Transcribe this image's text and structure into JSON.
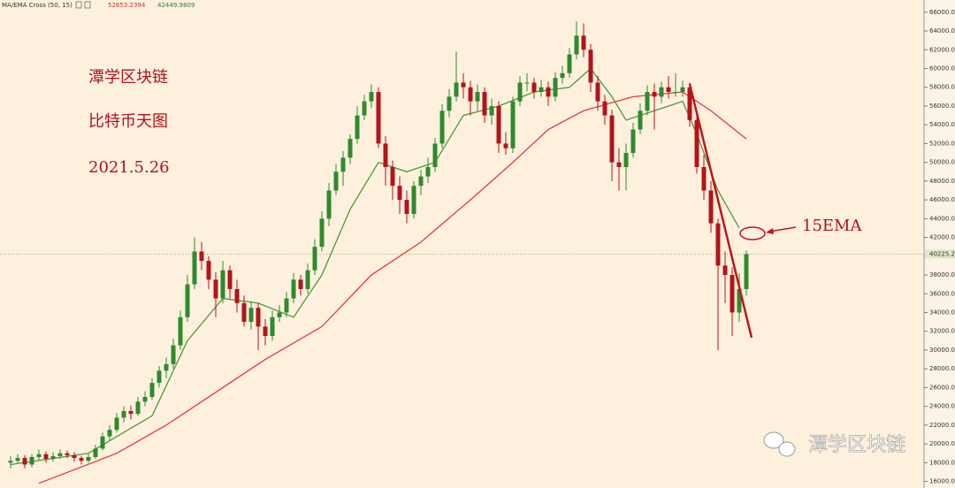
{
  "chart_data": {
    "type": "candlestick",
    "indicator": "MA/EMA Cross (50, 15)",
    "annotations": [
      "潭学区块链",
      "比特币天图",
      "2021.5.26",
      "15EMA"
    ],
    "watermark": "潭学区块链",
    "up_color": "#2f8a2f",
    "down_color": "#b3141b",
    "last_price": 40225.25,
    "ylim": [
      15300,
      67300
    ],
    "yticks": [
      {
        "value": 16000,
        "label": "16000.00"
      },
      {
        "value": 18000,
        "label": "18000.00"
      },
      {
        "value": 20000,
        "label": "20000.00"
      },
      {
        "value": 22000,
        "label": "22000.00"
      },
      {
        "value": 24000,
        "label": "24000.00"
      },
      {
        "value": 26000,
        "label": "26000.00"
      },
      {
        "value": 28000,
        "label": "28000.00"
      },
      {
        "value": 30000,
        "label": "30000.00"
      },
      {
        "value": 32000,
        "label": "32000.00"
      },
      {
        "value": 34000,
        "label": "34000.00"
      },
      {
        "value": 36000,
        "label": "36000.00"
      },
      {
        "value": 38000,
        "label": "38000.00"
      },
      {
        "value": 40000,
        "label": "40000.00"
      },
      {
        "value": 42000,
        "label": "42000.00"
      },
      {
        "value": 44000,
        "label": "44000.00"
      },
      {
        "value": 46000,
        "label": "46000.00"
      },
      {
        "value": 48000,
        "label": "48000.00"
      },
      {
        "value": 50000,
        "label": "50000.00"
      },
      {
        "value": 52000,
        "label": "52000.00"
      },
      {
        "value": 54000,
        "label": "54000.00"
      },
      {
        "value": 56000,
        "label": "56000.00"
      },
      {
        "value": 58000,
        "label": "58000.00"
      },
      {
        "value": 60000,
        "label": "60000.00"
      },
      {
        "value": 62000,
        "label": "62000.00"
      },
      {
        "value": 64000,
        "label": "64000.00"
      },
      {
        "value": 66000,
        "label": "66000.00"
      }
    ],
    "candles": [
      [
        18000,
        18700,
        17400,
        18200
      ],
      [
        18200,
        18900,
        17900,
        18500
      ],
      [
        18500,
        18800,
        17400,
        17800
      ],
      [
        17800,
        18900,
        17500,
        18600
      ],
      [
        18600,
        19400,
        18300,
        18900
      ],
      [
        18900,
        19200,
        18000,
        18400
      ],
      [
        18400,
        19100,
        18100,
        18700
      ],
      [
        18700,
        19400,
        18400,
        19000
      ],
      [
        19000,
        19300,
        18500,
        18800
      ],
      [
        18800,
        19100,
        18100,
        18500
      ],
      [
        18500,
        18700,
        17800,
        18200
      ],
      [
        18200,
        18900,
        18000,
        18600
      ],
      [
        18600,
        19900,
        18400,
        19500
      ],
      [
        19500,
        21200,
        19300,
        20800
      ],
      [
        20800,
        22000,
        20400,
        21500
      ],
      [
        21500,
        23300,
        21200,
        22800
      ],
      [
        22800,
        24000,
        22300,
        23500
      ],
      [
        23500,
        24100,
        22600,
        23200
      ],
      [
        23200,
        25000,
        23000,
        24500
      ],
      [
        24500,
        25600,
        24000,
        25000
      ],
      [
        25000,
        27000,
        24700,
        26500
      ],
      [
        26500,
        28300,
        26000,
        27800
      ],
      [
        27800,
        29200,
        27000,
        28500
      ],
      [
        28500,
        31200,
        28000,
        30500
      ],
      [
        30500,
        34200,
        30000,
        33500
      ],
      [
        33500,
        38000,
        33000,
        37000
      ],
      [
        37000,
        42000,
        36500,
        40500
      ],
      [
        40500,
        41500,
        38500,
        39500
      ],
      [
        39500,
        40000,
        36500,
        37500
      ],
      [
        37500,
        38300,
        33500,
        35500
      ],
      [
        35500,
        39500,
        35000,
        38500
      ],
      [
        38500,
        39000,
        35500,
        36500
      ],
      [
        36500,
        37500,
        34000,
        35000
      ],
      [
        35000,
        35800,
        32500,
        33000
      ],
      [
        33000,
        35200,
        32200,
        34500
      ],
      [
        34500,
        35000,
        30000,
        32500
      ],
      [
        32500,
        33300,
        30500,
        31500
      ],
      [
        31500,
        34200,
        31000,
        33500
      ],
      [
        33500,
        34800,
        33000,
        34000
      ],
      [
        34000,
        36200,
        33500,
        35500
      ],
      [
        35500,
        38200,
        35000,
        37500
      ],
      [
        37500,
        38000,
        35800,
        36500
      ],
      [
        36500,
        39200,
        36000,
        38500
      ],
      [
        38500,
        41800,
        38000,
        41000
      ],
      [
        41000,
        44800,
        40500,
        44000
      ],
      [
        44000,
        47800,
        43200,
        47000
      ],
      [
        47000,
        49800,
        46500,
        49000
      ],
      [
        49000,
        51200,
        47500,
        50500
      ],
      [
        50500,
        53000,
        49800,
        52500
      ],
      [
        52500,
        56000,
        52000,
        55000
      ],
      [
        55000,
        57200,
        54500,
        56500
      ],
      [
        56500,
        58300,
        55800,
        57500
      ],
      [
        57500,
        58000,
        51500,
        52000
      ],
      [
        52000,
        52800,
        47500,
        49500
      ],
      [
        49500,
        50200,
        46000,
        47500
      ],
      [
        47500,
        48500,
        44500,
        46000
      ],
      [
        46000,
        47000,
        43500,
        44500
      ],
      [
        44500,
        48000,
        44000,
        47500
      ],
      [
        47500,
        49200,
        46500,
        48500
      ],
      [
        48500,
        50500,
        47800,
        49500
      ],
      [
        49500,
        52600,
        49000,
        52000
      ],
      [
        52000,
        56200,
        51500,
        55500
      ],
      [
        55500,
        57800,
        54800,
        57000
      ],
      [
        57000,
        61800,
        56500,
        58500
      ],
      [
        58500,
        59500,
        56800,
        58000
      ],
      [
        58000,
        58700,
        55000,
        56500
      ],
      [
        56500,
        58300,
        55500,
        57500
      ],
      [
        57500,
        58000,
        54200,
        55000
      ],
      [
        55000,
        56800,
        54000,
        56000
      ],
      [
        56000,
        56500,
        51000,
        52000
      ],
      [
        52000,
        53200,
        50800,
        51500
      ],
      [
        51500,
        57000,
        51000,
        56500
      ],
      [
        56500,
        59200,
        56000,
        58500
      ],
      [
        58500,
        59500,
        57600,
        58500
      ],
      [
        58500,
        59000,
        56800,
        57500
      ],
      [
        57500,
        58800,
        57000,
        58000
      ],
      [
        58000,
        58600,
        56000,
        57000
      ],
      [
        57000,
        59600,
        56500,
        59000
      ],
      [
        59000,
        60300,
        58400,
        59500
      ],
      [
        59500,
        62200,
        59000,
        61500
      ],
      [
        61500,
        65000,
        61000,
        63500
      ],
      [
        63500,
        64800,
        61200,
        62000
      ],
      [
        62000,
        62600,
        57500,
        58500
      ],
      [
        58500,
        59200,
        55500,
        56500
      ],
      [
        56500,
        57200,
        54000,
        55000
      ],
      [
        55000,
        55600,
        48000,
        50000
      ],
      [
        50000,
        51500,
        47000,
        49500
      ],
      [
        49500,
        52000,
        47000,
        51000
      ],
      [
        51000,
        54200,
        50500,
        53500
      ],
      [
        53500,
        56300,
        53000,
        55500
      ],
      [
        55500,
        58200,
        55000,
        57500
      ],
      [
        57500,
        58400,
        53500,
        57000
      ],
      [
        57000,
        58600,
        56300,
        58000
      ],
      [
        58000,
        59200,
        56800,
        57500
      ],
      [
        57500,
        59500,
        57000,
        57500
      ],
      [
        57500,
        58700,
        57000,
        58000
      ],
      [
        58000,
        58500,
        53800,
        54500
      ],
      [
        54500,
        55000,
        48800,
        49500
      ],
      [
        49500,
        50800,
        46000,
        47000
      ],
      [
        47000,
        48000,
        42500,
        43500
      ],
      [
        43500,
        44000,
        30000,
        39000
      ],
      [
        39000,
        40500,
        35000,
        38000
      ],
      [
        38000,
        38800,
        31500,
        34000
      ],
      [
        34000,
        38200,
        33000,
        36500
      ],
      [
        36500,
        40600,
        35800,
        40225.25
      ]
    ],
    "series": [
      {
        "color": "#e8393b",
        "last_value": 52653.2394,
        "x": [
          4,
          15,
          22,
          28,
          36,
          44,
          51,
          58,
          65,
          71,
          76,
          81,
          88,
          95,
          99,
          104
        ],
        "values": [
          15800,
          19000,
          22000,
          25000,
          29000,
          32500,
          38000,
          41500,
          46000,
          50000,
          53500,
          55500,
          57000,
          57500,
          55500,
          52500
        ]
      },
      {
        "color": "#4e9a3c",
        "last_value": 42449.9809,
        "x": [
          0,
          11,
          20,
          25,
          30,
          35,
          40,
          44,
          48,
          52,
          56,
          60,
          64,
          69,
          74,
          79,
          82,
          85,
          87,
          91,
          95,
          97,
          100,
          103
        ],
        "values": [
          17800,
          19000,
          23000,
          31000,
          35500,
          35000,
          33500,
          38000,
          45000,
          50000,
          49000,
          50000,
          55000,
          56000,
          57500,
          58000,
          60000,
          57000,
          54500,
          55500,
          56500,
          53000,
          47000,
          43000
        ]
      }
    ]
  }
}
